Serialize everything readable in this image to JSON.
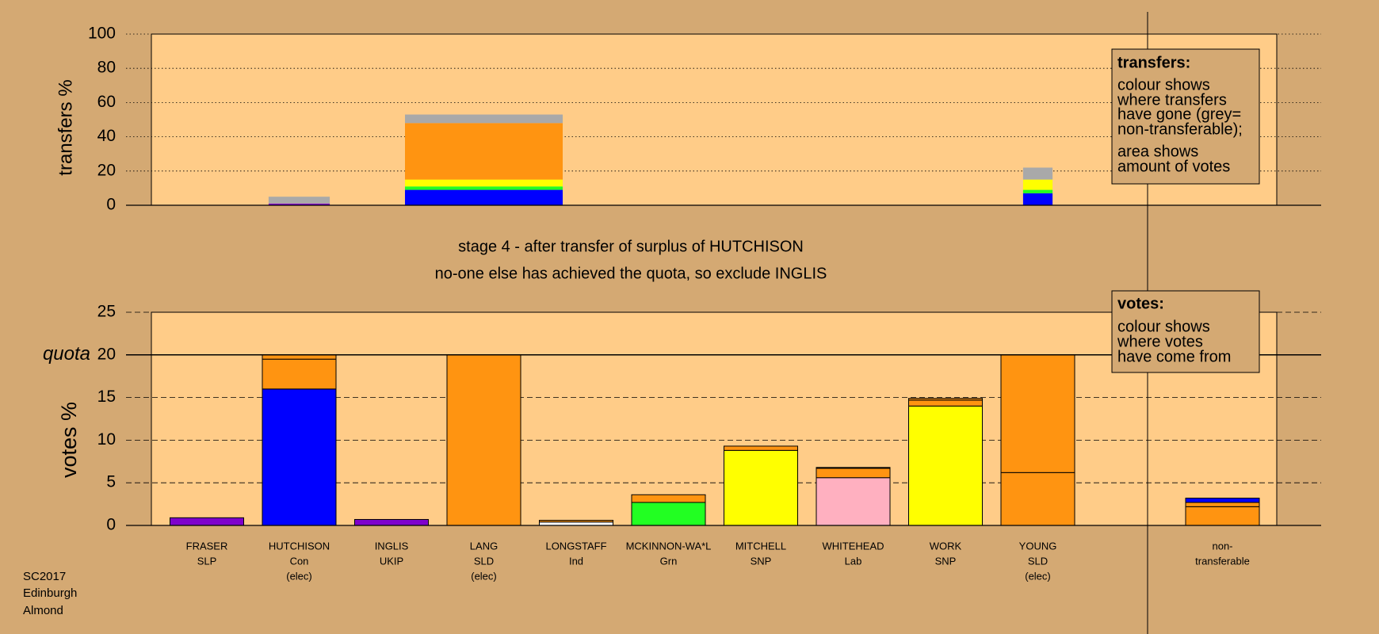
{
  "chart_data": [
    {
      "type": "bar",
      "stacked": true,
      "ylabel": "transfers %",
      "ylim": [
        0,
        100
      ],
      "yticks": [
        0,
        20,
        40,
        60,
        80,
        100
      ],
      "grid": "dotted",
      "widths": [
        null,
        0.83,
        null,
        2.14,
        null,
        null,
        null,
        null,
        null,
        0.4,
        null,
        null
      ],
      "series": [
        {
          "color": "#7f00cc",
          "values": [
            0,
            1,
            0,
            0,
            0,
            0,
            0,
            0,
            0,
            0,
            null,
            0
          ]
        },
        {
          "color": "#0000ff",
          "values": [
            0,
            0,
            0,
            9,
            0,
            0,
            0,
            0,
            0,
            7,
            null,
            0
          ]
        },
        {
          "color": "#22ff22",
          "values": [
            0,
            0,
            0,
            2,
            0,
            0,
            0,
            0,
            0,
            2,
            null,
            0
          ]
        },
        {
          "color": "#ffff00",
          "values": [
            0,
            0,
            0,
            4,
            0,
            0,
            0,
            0,
            0,
            6,
            null,
            0
          ]
        },
        {
          "color": "#ff9411",
          "values": [
            0,
            0,
            0,
            33,
            0,
            0,
            0,
            0,
            0,
            0,
            null,
            0
          ]
        },
        {
          "color": "#a9a9a9",
          "values": [
            0,
            4,
            0,
            5,
            0,
            0,
            0,
            0,
            0,
            7,
            null,
            0
          ]
        }
      ],
      "notes": {
        "title": "transfers:",
        "lines": [
          "colour shows",
          "where transfers",
          "have gone (grey=",
          "non-transferable);",
          "area shows",
          "amount of votes"
        ]
      }
    },
    {
      "type": "bar",
      "stacked": true,
      "ylabel": "votes %",
      "ylim": [
        0,
        25
      ],
      "yticks": [
        0,
        5,
        10,
        15,
        20,
        25
      ],
      "grid": "dashed",
      "quota": {
        "value": 20,
        "label": "quota"
      },
      "labels": [
        [
          "FRASER",
          "SLP"
        ],
        [
          "HUTCHISON",
          "Con",
          "(elec)"
        ],
        [
          "INGLIS",
          "UKIP"
        ],
        [
          "LANG",
          "SLD",
          "(elec)"
        ],
        [
          "LONGSTAFF",
          "Ind"
        ],
        [
          "MCKINNON-WA*L",
          "Grn"
        ],
        [
          "MITCHELL",
          "SNP"
        ],
        [
          "WHITEHEAD",
          "Lab"
        ],
        [
          "WORK",
          "SNP"
        ],
        [
          "YOUNG",
          "SLD",
          "(elec)"
        ],
        null,
        [
          "non-",
          "transferable"
        ]
      ],
      "series": [
        {
          "color": "#0000ff",
          "values": [
            0,
            16,
            0,
            0,
            0,
            0,
            0,
            0,
            0,
            0,
            null,
            0
          ]
        },
        {
          "color": "#7f00cc",
          "values": [
            0.9,
            0,
            0.7,
            0,
            0,
            0,
            0,
            0,
            0,
            0,
            null,
            0
          ]
        },
        {
          "color": "#22ff22",
          "values": [
            0,
            0,
            0,
            0,
            0,
            2.7,
            0,
            0,
            0,
            0,
            null,
            0
          ]
        },
        {
          "color": "#ffff00",
          "values": [
            0,
            0,
            0,
            0,
            0,
            0,
            8.8,
            0,
            14,
            0,
            null,
            0
          ]
        },
        {
          "color": "#ffb0c0",
          "values": [
            0,
            0,
            0,
            0,
            0,
            0,
            0,
            5.6,
            0,
            0,
            null,
            0
          ]
        },
        {
          "color": "#ffffff",
          "values": [
            0,
            0,
            0,
            0,
            0.4,
            0,
            0,
            0,
            0,
            0,
            null,
            0
          ]
        },
        {
          "color": "#ff9411",
          "values": [
            0,
            3.5,
            0,
            20,
            0.2,
            0.9,
            0.5,
            1.1,
            0.7,
            6.2,
            null,
            2.2
          ]
        },
        {
          "color": "#ff9411",
          "values": [
            0,
            0.5,
            0,
            0,
            0,
            0,
            0,
            0,
            0.2,
            13.8,
            null,
            0.5
          ]
        },
        {
          "color": "#000000",
          "values": [
            0,
            0,
            0,
            0,
            0,
            0,
            0,
            0.1,
            0,
            0,
            null,
            0
          ]
        },
        {
          "color": "#0000ff",
          "values": [
            0,
            0,
            0,
            0,
            0,
            0,
            0,
            0,
            0,
            0,
            null,
            0.5
          ]
        }
      ],
      "notes": {
        "title": "votes:",
        "lines": [
          "colour shows",
          "where votes",
          "have come from"
        ]
      }
    }
  ],
  "captions": [
    "stage 4 - after transfer of surplus of HUTCHISON",
    "no-one else has achieved the quota, so exclude INGLIS"
  ],
  "footer": [
    "SC2017",
    "Edinburgh",
    "Almond"
  ]
}
